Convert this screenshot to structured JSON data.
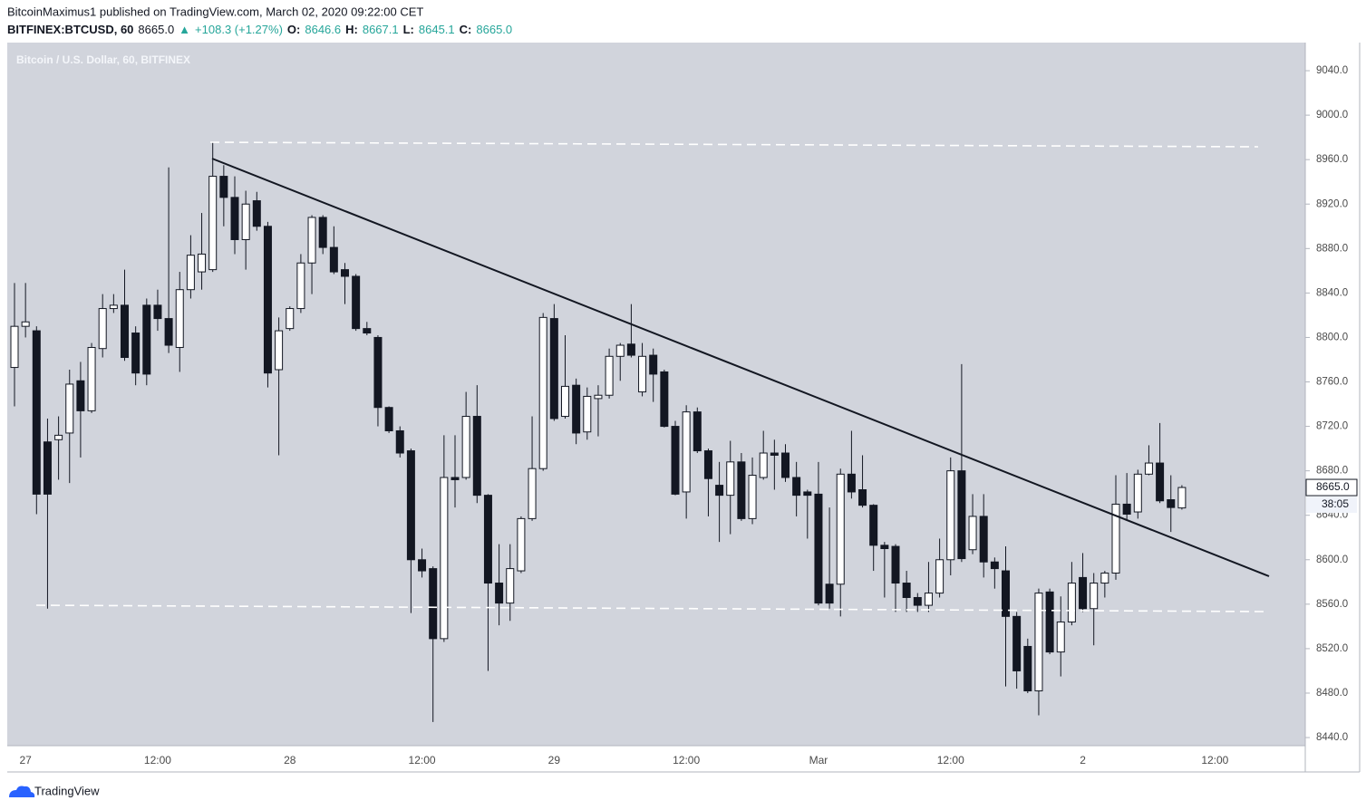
{
  "header": {
    "byline": "BitcoinMaximus1 published on TradingView.com, March 02, 2020 09:22:00 CET",
    "quote": [
      "BITFINEX:BTCUSD, 60",
      "8665.0",
      "▲",
      "+108.3 (+1.27%)",
      "O:",
      "8646.6",
      "H:",
      "8667.1",
      "L:",
      "8645.1",
      "C:",
      "8665.0"
    ]
  },
  "footer": {
    "brand": "TradingView"
  },
  "chart_data": {
    "type": "candlestick",
    "title": "Bitcoin / U.S. Dollar, 60, BITFINEX",
    "categories": [
      null,
      "27",
      null,
      null,
      null,
      null,
      null,
      null,
      null,
      null,
      null,
      null,
      null,
      "12:00",
      null,
      null,
      null,
      null,
      null,
      null,
      null,
      null,
      null,
      null,
      null,
      "28",
      null,
      null,
      null,
      null,
      null,
      null,
      null,
      null,
      null,
      null,
      null,
      "12:00",
      null,
      null,
      null,
      null,
      null,
      null,
      null,
      null,
      null,
      null,
      null,
      "29",
      null,
      null,
      null,
      null,
      null,
      null,
      null,
      null,
      null,
      null,
      null,
      "12:00",
      null,
      null,
      null,
      null,
      null,
      null,
      null,
      null,
      null,
      null,
      null,
      "Mar",
      null,
      null,
      null,
      null,
      null,
      null,
      null,
      null,
      null,
      null,
      null,
      "12:00",
      null,
      null,
      null,
      null,
      null,
      null,
      null,
      null,
      null,
      null,
      null,
      "2",
      null,
      null,
      null,
      null,
      null,
      null,
      null,
      null,
      null,
      null,
      null,
      "12:00"
    ],
    "open": [
      8773,
      8810,
      8806,
      8706,
      8708,
      8714,
      8761,
      8734,
      8790,
      8826,
      8829,
      8804,
      8829,
      8829,
      8817,
      8791,
      8843,
      8859,
      8861,
      8945,
      8926,
      8888,
      8923,
      8900,
      8771,
      8808,
      8826,
      8867,
      8908,
      8881,
      8861,
      8855,
      8808,
      8800,
      8737,
      8716,
      8698,
      8600,
      8592,
      8529,
      8674,
      8674,
      8729,
      8658,
      8579,
      8561,
      8590,
      8637,
      8682,
      8817,
      8729,
      8757,
      8715,
      8745,
      8748,
      8783,
      8794,
      8751,
      8784,
      8769,
      8720,
      8661,
      8733,
      8698,
      8667,
      8658,
      8688,
      8637,
      8674,
      8696,
      8696,
      8674,
      8661,
      8659,
      8578,
      8578,
      8677,
      8663,
      8649,
      8613,
      8612,
      8579,
      8566,
      8559,
      8570,
      8600,
      8680,
      8609,
      8639,
      8598,
      8590,
      8549,
      8522,
      8482,
      8571,
      8517,
      8544,
      8584,
      8556,
      8579,
      8588,
      8650,
      8643,
      8677,
      8687,
      8654,
      8646.6,
      null,
      null,
      null
    ],
    "high": [
      8849,
      8849,
      8810,
      8727,
      8729,
      8771,
      8778,
      8795,
      8839,
      8839,
      8861,
      8810,
      8835,
      8843,
      8953,
      8859,
      8892,
      8912,
      8976,
      8955,
      8945,
      8932,
      8931,
      8904,
      8818,
      8828,
      8875,
      8910,
      8910,
      8900,
      8867,
      8857,
      8814,
      8802,
      8738,
      8720,
      8700,
      8610,
      8594,
      8712,
      8712,
      8751,
      8757,
      8659,
      8614,
      8614,
      8639,
      8729,
      8822,
      8830,
      8802,
      8763,
      8755,
      8757,
      8790,
      8795,
      8830,
      8795,
      8790,
      8771,
      8725,
      8739,
      8737,
      8700,
      8688,
      8707,
      8696,
      8692,
      8716,
      8708,
      8704,
      8688,
      8663,
      8688,
      8647,
      8682,
      8716,
      8694,
      8650,
      8616,
      8614,
      8590,
      8570,
      8598,
      8619,
      8692,
      8776,
      8659,
      8659,
      8602,
      8612,
      8553,
      8529,
      8574,
      8574,
      8567,
      8598,
      8606,
      8588,
      8590,
      8676,
      8678,
      8681,
      8703,
      8723,
      8676,
      8667.1,
      null,
      null,
      null
    ],
    "low": [
      8738,
      8800,
      8641,
      8556,
      8672,
      8669,
      8692,
      8732,
      8782,
      8822,
      8779,
      8757,
      8757,
      8806,
      8786,
      8769,
      8835,
      8843,
      8859,
      8900,
      8875,
      8861,
      8896,
      8755,
      8694,
      8806,
      8822,
      8839,
      8875,
      8857,
      8830,
      8806,
      8802,
      8720,
      8714,
      8692,
      8552,
      8584,
      8454,
      8526,
      8647,
      8672,
      8651,
      8500,
      8541,
      8545,
      8588,
      8635,
      8680,
      8725,
      8727,
      8704,
      8708,
      8711,
      8745,
      8761,
      8782,
      8747,
      8742,
      8719,
      8658,
      8637,
      8696,
      8639,
      8616,
      8623,
      8635,
      8632,
      8672,
      8663,
      8670,
      8639,
      8619,
      8559,
      8556,
      8549,
      8655,
      8647,
      8590,
      8566,
      8553,
      8553,
      8553,
      8553,
      8566,
      8586,
      8598,
      8605,
      8584,
      8574,
      8486,
      8484,
      8480,
      8460,
      8515,
      8495,
      8541,
      8553,
      8523,
      8566,
      8582,
      8635,
      8637,
      8676,
      8651,
      8625,
      8645.1,
      null,
      null,
      null
    ],
    "close": [
      8810,
      8814,
      8659,
      8659,
      8712,
      8758,
      8734,
      8791,
      8826,
      8829,
      8782,
      8768,
      8767,
      8817,
      8793,
      8843,
      8874,
      8875,
      8945,
      8926,
      8888,
      8920,
      8900,
      8768,
      8806,
      8826,
      8867,
      8908,
      8881,
      8859,
      8855,
      8808,
      8804,
      8737,
      8716,
      8696,
      8600,
      8590,
      8529,
      8674,
      8672,
      8729,
      8658,
      8579,
      8561,
      8592,
      8637,
      8682,
      8818,
      8727,
      8756,
      8714,
      8747,
      8748,
      8783,
      8793,
      8784,
      8783,
      8767,
      8720,
      8659,
      8733,
      8698,
      8673,
      8658,
      8688,
      8637,
      8676,
      8696,
      8694,
      8674,
      8658,
      8658,
      8561,
      8561,
      8677,
      8661,
      8649,
      8613,
      8610,
      8579,
      8566,
      8559,
      8570,
      8600,
      8680,
      8601,
      8639,
      8598,
      8592,
      8549,
      8500,
      8482,
      8570,
      8517,
      8544,
      8579,
      8556,
      8579,
      8588,
      8650,
      8641,
      8677,
      8687,
      8653,
      8647,
      8665,
      null,
      null,
      null
    ],
    "up_color": "#ffffff",
    "down_color": "#131722",
    "ylim": [
      8432.7,
      9065.3
    ],
    "yticks": [
      {
        "value": 8440,
        "label": "8440.0"
      },
      {
        "value": 8480,
        "label": "8480.0"
      },
      {
        "value": 8520,
        "label": "8520.0"
      },
      {
        "value": 8560,
        "label": "8560.0"
      },
      {
        "value": 8600,
        "label": "8600.0"
      },
      {
        "value": 8640,
        "label": "8640.0"
      },
      {
        "value": 8680,
        "label": "8680.0"
      },
      {
        "value": 8720,
        "label": "8720.0"
      },
      {
        "value": 8760,
        "label": "8760.0"
      },
      {
        "value": 8800,
        "label": "8800.0"
      },
      {
        "value": 8840,
        "label": "8840.0"
      },
      {
        "value": 8880,
        "label": "8880.0"
      },
      {
        "value": 8920,
        "label": "8920.0"
      },
      {
        "value": 8960,
        "label": "8960.0"
      },
      {
        "value": 9000,
        "label": "9000.0"
      },
      {
        "value": 9040,
        "label": "9040.0"
      }
    ],
    "grid": false,
    "last_price_label": "8665.0",
    "countdown": "38:05"
  }
}
